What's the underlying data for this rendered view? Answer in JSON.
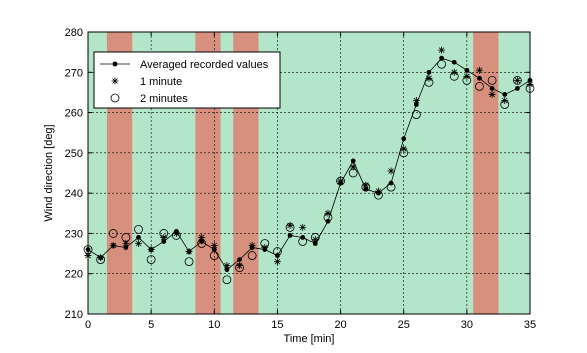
{
  "chart_data": {
    "type": "line",
    "xlabel": "Time [min]",
    "ylabel": "Wind direction [deg]",
    "xlim": [
      0,
      35
    ],
    "ylim": [
      210,
      280
    ],
    "xticks": [
      0,
      5,
      10,
      15,
      20,
      25,
      30,
      35
    ],
    "yticks": [
      210,
      220,
      230,
      240,
      250,
      260,
      270,
      280
    ],
    "grid": true,
    "legend_position": "top-left",
    "colors": {
      "background_band": "#b3e6c8",
      "highlight_band": "#d8907e",
      "line": "#000000",
      "grid": "#000000"
    },
    "highlight_bands": [
      [
        1.5,
        3.5
      ],
      [
        8.5,
        10.5
      ],
      [
        11.5,
        13.5
      ],
      [
        30.5,
        32.5
      ]
    ],
    "series": [
      {
        "name": "Averaged recorded values",
        "marker": "dot",
        "line": true,
        "x": [
          0,
          1,
          2,
          3,
          4,
          5,
          6,
          7,
          8,
          9,
          10,
          11,
          12,
          13,
          14,
          15,
          16,
          17,
          18,
          19,
          20,
          21,
          22,
          23,
          24,
          25,
          26,
          27,
          28,
          29,
          30,
          31,
          32,
          33,
          34,
          35
        ],
        "y": [
          226,
          224,
          227,
          226.5,
          229,
          226,
          228,
          230.5,
          225.5,
          228,
          226,
          221,
          223.5,
          226.5,
          226,
          224.5,
          229.5,
          229,
          227.5,
          233,
          242.5,
          248,
          241,
          240,
          242.5,
          253.5,
          262,
          270,
          273.5,
          272.5,
          270.5,
          268.5,
          266,
          264.5,
          266,
          268
        ]
      },
      {
        "name": "1 minute",
        "marker": "star",
        "line": false,
        "x": [
          0,
          1,
          2,
          3,
          4,
          5,
          6,
          7,
          8,
          9,
          10,
          11,
          12,
          13,
          14,
          15,
          16,
          17,
          18,
          19,
          20,
          21,
          22,
          23,
          24,
          25,
          26,
          27,
          28,
          29,
          30,
          31,
          32,
          33,
          34,
          35
        ],
        "y": [
          224.5,
          224,
          227,
          227.5,
          227.5,
          226,
          229,
          230,
          225.5,
          229,
          227,
          222,
          222,
          227,
          226.5,
          223,
          232,
          231.5,
          228.5,
          235,
          243,
          246.5,
          242,
          240.5,
          245.5,
          251,
          263,
          268.5,
          275.5,
          270,
          269,
          270.5,
          264.5,
          263,
          268,
          267
        ]
      },
      {
        "name": "2 minutes",
        "marker": "circle",
        "line": false,
        "x": [
          0,
          1,
          2,
          3,
          4,
          5,
          6,
          7,
          8,
          9,
          10,
          11,
          12,
          13,
          14,
          15,
          16,
          17,
          18,
          19,
          20,
          21,
          22,
          23,
          24,
          25,
          26,
          27,
          28,
          29,
          30,
          31,
          32,
          33,
          34,
          35
        ],
        "y": [
          226,
          223.5,
          230,
          229,
          231,
          223.5,
          230,
          229.5,
          223,
          227.5,
          224.5,
          218.5,
          221.5,
          224.5,
          227.5,
          225.5,
          231.5,
          228,
          229,
          234,
          243,
          245,
          241.5,
          239.5,
          241.5,
          250,
          259.5,
          267.5,
          272,
          269,
          268,
          266.5,
          268,
          262,
          268,
          266
        ]
      }
    ]
  }
}
